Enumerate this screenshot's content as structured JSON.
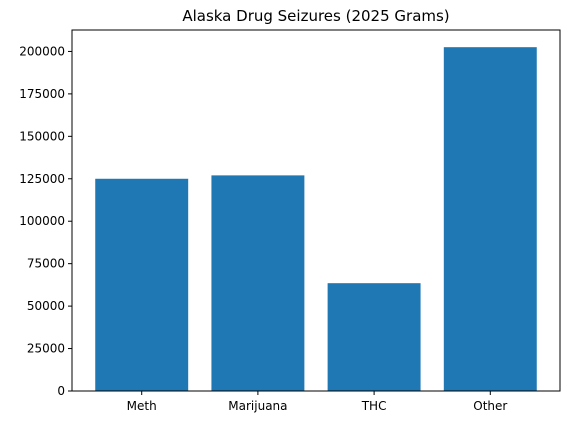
{
  "chart_data": {
    "type": "bar",
    "title": "Alaska Drug Seizures (2025 Grams)",
    "categories": [
      "Meth",
      "Marijuana",
      "THC",
      "Other"
    ],
    "values": [
      125000,
      127000,
      63500,
      202500
    ],
    "xlabel": "",
    "ylabel": "",
    "ylim": [
      0,
      212625
    ],
    "yticks": [
      0,
      25000,
      50000,
      75000,
      100000,
      125000,
      150000,
      175000,
      200000
    ],
    "grid": false,
    "legend": "none",
    "bar_color": "#1f77b4"
  }
}
